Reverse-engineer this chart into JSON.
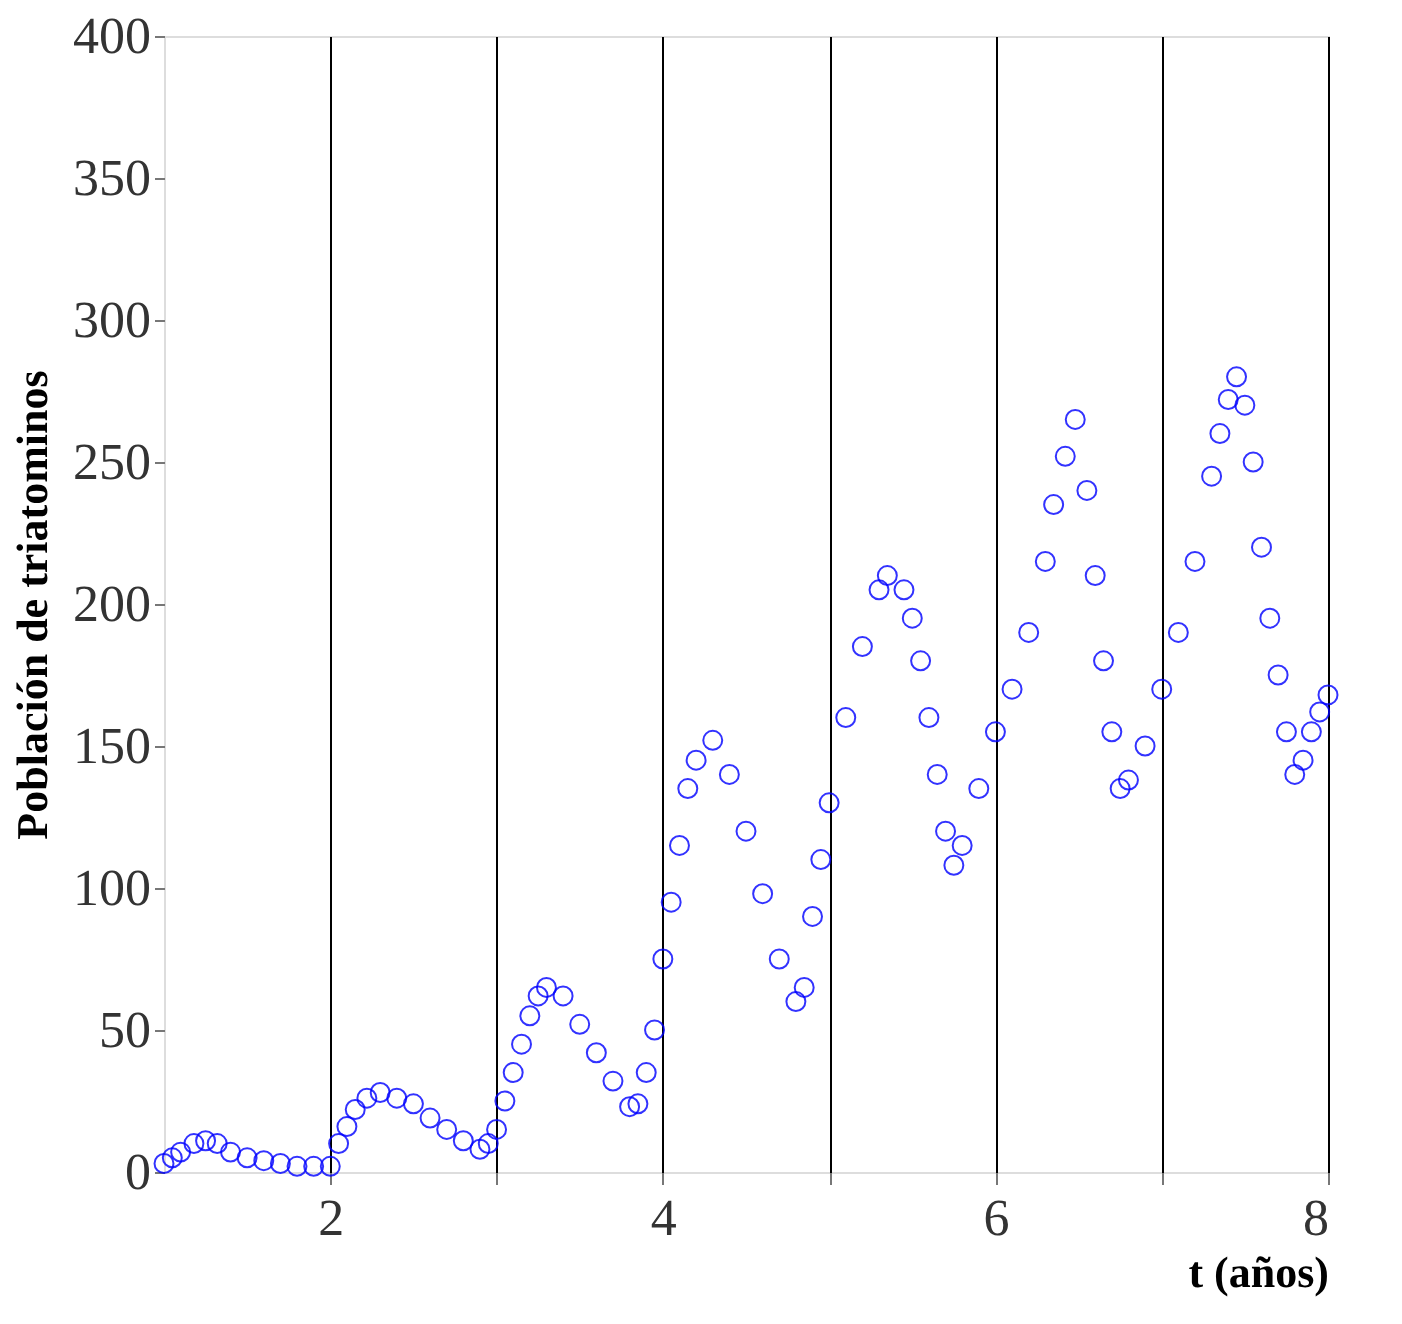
{
  "chart_data": {
    "type": "scatter",
    "xlabel": "t  (años)",
    "ylabel": "Población de triatominos",
    "xlim": [
      1,
      8
    ],
    "ylim": [
      0,
      400
    ],
    "xticks": [
      2,
      {
        "value": 3,
        "label": null
      },
      4,
      {
        "value": 5,
        "label": null
      },
      6,
      {
        "value": 7,
        "label": null
      },
      8
    ],
    "yticks": [
      0,
      50,
      100,
      150,
      200,
      250,
      300,
      350,
      400
    ],
    "grid": "x",
    "marker": "circle",
    "series": [
      {
        "color": "#0000ff",
        "x": [
          1.0,
          1.05,
          1.1,
          1.18,
          1.25,
          1.32,
          1.4,
          1.5,
          1.6,
          1.7,
          1.8,
          1.9,
          2.0,
          2.05,
          2.1,
          2.15,
          2.22,
          2.3,
          2.4,
          2.5,
          2.6,
          2.7,
          2.8,
          2.9,
          2.95,
          3.0,
          3.05,
          3.1,
          3.15,
          3.2,
          3.25,
          3.3,
          3.4,
          3.5,
          3.6,
          3.7,
          3.8,
          3.85,
          3.9,
          3.95,
          4.0,
          4.05,
          4.1,
          4.15,
          4.2,
          4.3,
          4.4,
          4.5,
          4.6,
          4.7,
          4.8,
          4.85,
          4.9,
          4.95,
          5.0,
          5.1,
          5.2,
          5.3,
          5.35,
          5.45,
          5.5,
          5.55,
          5.6,
          5.65,
          5.7,
          5.75,
          5.8,
          5.9,
          6.0,
          6.1,
          6.2,
          6.3,
          6.35,
          6.42,
          6.48,
          6.55,
          6.6,
          6.65,
          6.7,
          6.75,
          6.8,
          6.9,
          7.0,
          7.1,
          7.2,
          7.3,
          7.35,
          7.4,
          7.45,
          7.5,
          7.55,
          7.6,
          7.65,
          7.7,
          7.75,
          7.8,
          7.85,
          7.9,
          7.95,
          8.0
        ],
        "values": [
          3,
          5,
          7,
          10,
          11,
          10,
          7,
          5,
          4,
          3,
          2,
          2,
          2,
          10,
          16,
          22,
          26,
          28,
          26,
          24,
          19,
          15,
          11,
          8,
          10,
          15,
          25,
          35,
          45,
          55,
          62,
          65,
          62,
          52,
          42,
          32,
          23,
          24,
          35,
          50,
          75,
          95,
          115,
          135,
          145,
          152,
          140,
          120,
          98,
          75,
          60,
          65,
          90,
          110,
          130,
          160,
          185,
          205,
          210,
          205,
          195,
          180,
          160,
          140,
          120,
          108,
          115,
          135,
          155,
          170,
          190,
          215,
          235,
          252,
          265,
          240,
          210,
          180,
          155,
          135,
          138,
          150,
          170,
          190,
          215,
          245,
          260,
          272,
          280,
          270,
          250,
          220,
          195,
          175,
          155,
          140,
          145,
          155,
          162,
          168
        ]
      }
    ]
  }
}
